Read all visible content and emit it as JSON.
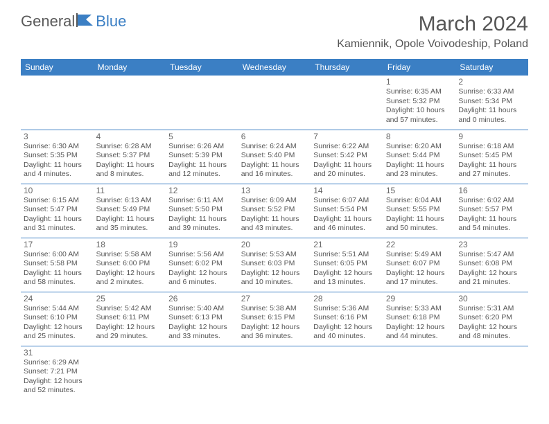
{
  "logo": {
    "text1": "General",
    "text2": "Blue"
  },
  "title": "March 2024",
  "location": "Kamiennik, Opole Voivodeship, Poland",
  "header_bg": "#3b7fc4",
  "header_fg": "#ffffff",
  "days": [
    "Sunday",
    "Monday",
    "Tuesday",
    "Wednesday",
    "Thursday",
    "Friday",
    "Saturday"
  ],
  "weeks": [
    [
      null,
      null,
      null,
      null,
      null,
      {
        "n": "1",
        "sunrise": "6:35 AM",
        "sunset": "5:32 PM",
        "daylight": "10 hours and 57 minutes."
      },
      {
        "n": "2",
        "sunrise": "6:33 AM",
        "sunset": "5:34 PM",
        "daylight": "11 hours and 0 minutes."
      }
    ],
    [
      {
        "n": "3",
        "sunrise": "6:30 AM",
        "sunset": "5:35 PM",
        "daylight": "11 hours and 4 minutes."
      },
      {
        "n": "4",
        "sunrise": "6:28 AM",
        "sunset": "5:37 PM",
        "daylight": "11 hours and 8 minutes."
      },
      {
        "n": "5",
        "sunrise": "6:26 AM",
        "sunset": "5:39 PM",
        "daylight": "11 hours and 12 minutes."
      },
      {
        "n": "6",
        "sunrise": "6:24 AM",
        "sunset": "5:40 PM",
        "daylight": "11 hours and 16 minutes."
      },
      {
        "n": "7",
        "sunrise": "6:22 AM",
        "sunset": "5:42 PM",
        "daylight": "11 hours and 20 minutes."
      },
      {
        "n": "8",
        "sunrise": "6:20 AM",
        "sunset": "5:44 PM",
        "daylight": "11 hours and 23 minutes."
      },
      {
        "n": "9",
        "sunrise": "6:18 AM",
        "sunset": "5:45 PM",
        "daylight": "11 hours and 27 minutes."
      }
    ],
    [
      {
        "n": "10",
        "sunrise": "6:15 AM",
        "sunset": "5:47 PM",
        "daylight": "11 hours and 31 minutes."
      },
      {
        "n": "11",
        "sunrise": "6:13 AM",
        "sunset": "5:49 PM",
        "daylight": "11 hours and 35 minutes."
      },
      {
        "n": "12",
        "sunrise": "6:11 AM",
        "sunset": "5:50 PM",
        "daylight": "11 hours and 39 minutes."
      },
      {
        "n": "13",
        "sunrise": "6:09 AM",
        "sunset": "5:52 PM",
        "daylight": "11 hours and 43 minutes."
      },
      {
        "n": "14",
        "sunrise": "6:07 AM",
        "sunset": "5:54 PM",
        "daylight": "11 hours and 46 minutes."
      },
      {
        "n": "15",
        "sunrise": "6:04 AM",
        "sunset": "5:55 PM",
        "daylight": "11 hours and 50 minutes."
      },
      {
        "n": "16",
        "sunrise": "6:02 AM",
        "sunset": "5:57 PM",
        "daylight": "11 hours and 54 minutes."
      }
    ],
    [
      {
        "n": "17",
        "sunrise": "6:00 AM",
        "sunset": "5:58 PM",
        "daylight": "11 hours and 58 minutes."
      },
      {
        "n": "18",
        "sunrise": "5:58 AM",
        "sunset": "6:00 PM",
        "daylight": "12 hours and 2 minutes."
      },
      {
        "n": "19",
        "sunrise": "5:56 AM",
        "sunset": "6:02 PM",
        "daylight": "12 hours and 6 minutes."
      },
      {
        "n": "20",
        "sunrise": "5:53 AM",
        "sunset": "6:03 PM",
        "daylight": "12 hours and 10 minutes."
      },
      {
        "n": "21",
        "sunrise": "5:51 AM",
        "sunset": "6:05 PM",
        "daylight": "12 hours and 13 minutes."
      },
      {
        "n": "22",
        "sunrise": "5:49 AM",
        "sunset": "6:07 PM",
        "daylight": "12 hours and 17 minutes."
      },
      {
        "n": "23",
        "sunrise": "5:47 AM",
        "sunset": "6:08 PM",
        "daylight": "12 hours and 21 minutes."
      }
    ],
    [
      {
        "n": "24",
        "sunrise": "5:44 AM",
        "sunset": "6:10 PM",
        "daylight": "12 hours and 25 minutes."
      },
      {
        "n": "25",
        "sunrise": "5:42 AM",
        "sunset": "6:11 PM",
        "daylight": "12 hours and 29 minutes."
      },
      {
        "n": "26",
        "sunrise": "5:40 AM",
        "sunset": "6:13 PM",
        "daylight": "12 hours and 33 minutes."
      },
      {
        "n": "27",
        "sunrise": "5:38 AM",
        "sunset": "6:15 PM",
        "daylight": "12 hours and 36 minutes."
      },
      {
        "n": "28",
        "sunrise": "5:36 AM",
        "sunset": "6:16 PM",
        "daylight": "12 hours and 40 minutes."
      },
      {
        "n": "29",
        "sunrise": "5:33 AM",
        "sunset": "6:18 PM",
        "daylight": "12 hours and 44 minutes."
      },
      {
        "n": "30",
        "sunrise": "5:31 AM",
        "sunset": "6:20 PM",
        "daylight": "12 hours and 48 minutes."
      }
    ],
    [
      {
        "n": "31",
        "sunrise": "6:29 AM",
        "sunset": "7:21 PM",
        "daylight": "12 hours and 52 minutes."
      },
      null,
      null,
      null,
      null,
      null,
      null
    ]
  ],
  "labels": {
    "sunrise": "Sunrise: ",
    "sunset": "Sunset: ",
    "daylight": "Daylight: "
  }
}
